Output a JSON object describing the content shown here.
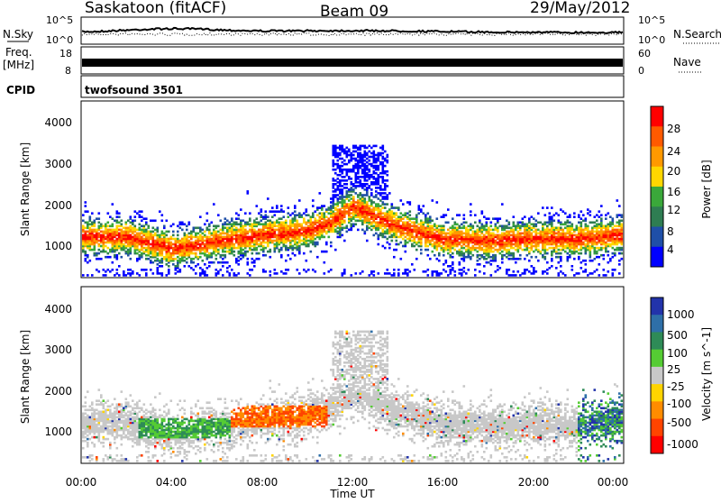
{
  "header": {
    "title": "Saskatoon (fitACF)",
    "beam": "Beam 09",
    "date": "29/May/2012"
  },
  "strips": {
    "nsky_label": "N.Sky",
    "nsky_ticks": [
      "10^5",
      "10^0"
    ],
    "nsearch_label": "N.Search",
    "nsearch_ticks": [
      "10^5",
      "10^0"
    ],
    "freq_label_line1": "Freq.",
    "freq_label_line2": "[MHz]",
    "freq_ticks": [
      "18",
      "8"
    ],
    "nave_label": "Nave",
    "nave_ticks": [
      "60",
      "0"
    ],
    "cpid_label": "CPID",
    "cpid_value": "twofsound 3501"
  },
  "axes": {
    "ylabel": "Slant Range [km]",
    "yticks": [
      "4000",
      "3000",
      "2000",
      "1000"
    ],
    "xticks": [
      "00:00",
      "04:00",
      "08:00",
      "12:00",
      "16:00",
      "20:00",
      "00:00"
    ],
    "xlabel": "Time UT"
  },
  "colors": {
    "power": [
      "#0000ff",
      "#1f4fa8",
      "#2e7d52",
      "#3aa83a",
      "#ffd700",
      "#ff9900",
      "#ff5a00",
      "#ff0000"
    ],
    "velocity": [
      "#2233aa",
      "#2e6fa8",
      "#2e8b57",
      "#55cc33",
      "#c8c8c8",
      "#ffd400",
      "#ff8c00",
      "#ff4400",
      "#ff0000"
    ]
  },
  "chart_data": [
    {
      "type": "heatmap",
      "panel": "power",
      "colorbar_label": "Power [dB]",
      "colorbar_ticks": [
        "28",
        "24",
        "20",
        "16",
        "12",
        "8",
        "4"
      ],
      "x_range_hours": [
        0,
        24
      ],
      "y_range_km": [
        180,
        4500
      ],
      "ridge": {
        "time_h": [
          0,
          2,
          4,
          6,
          8,
          10,
          11,
          12,
          14,
          16,
          18,
          20,
          22,
          24
        ],
        "range_km": [
          1150,
          1150,
          850,
          1050,
          1200,
          1300,
          1500,
          1900,
          1400,
          1100,
          1050,
          1100,
          1100,
          1200
        ]
      }
    },
    {
      "type": "heatmap",
      "panel": "velocity",
      "colorbar_label": "Velocity [m s^-1]",
      "colorbar_ticks": [
        "1000",
        "500",
        "100",
        "25",
        "-25",
        "-100",
        "-500",
        "-1000"
      ],
      "x_range_hours": [
        0,
        24
      ],
      "y_range_km": [
        180,
        4500
      ]
    }
  ]
}
